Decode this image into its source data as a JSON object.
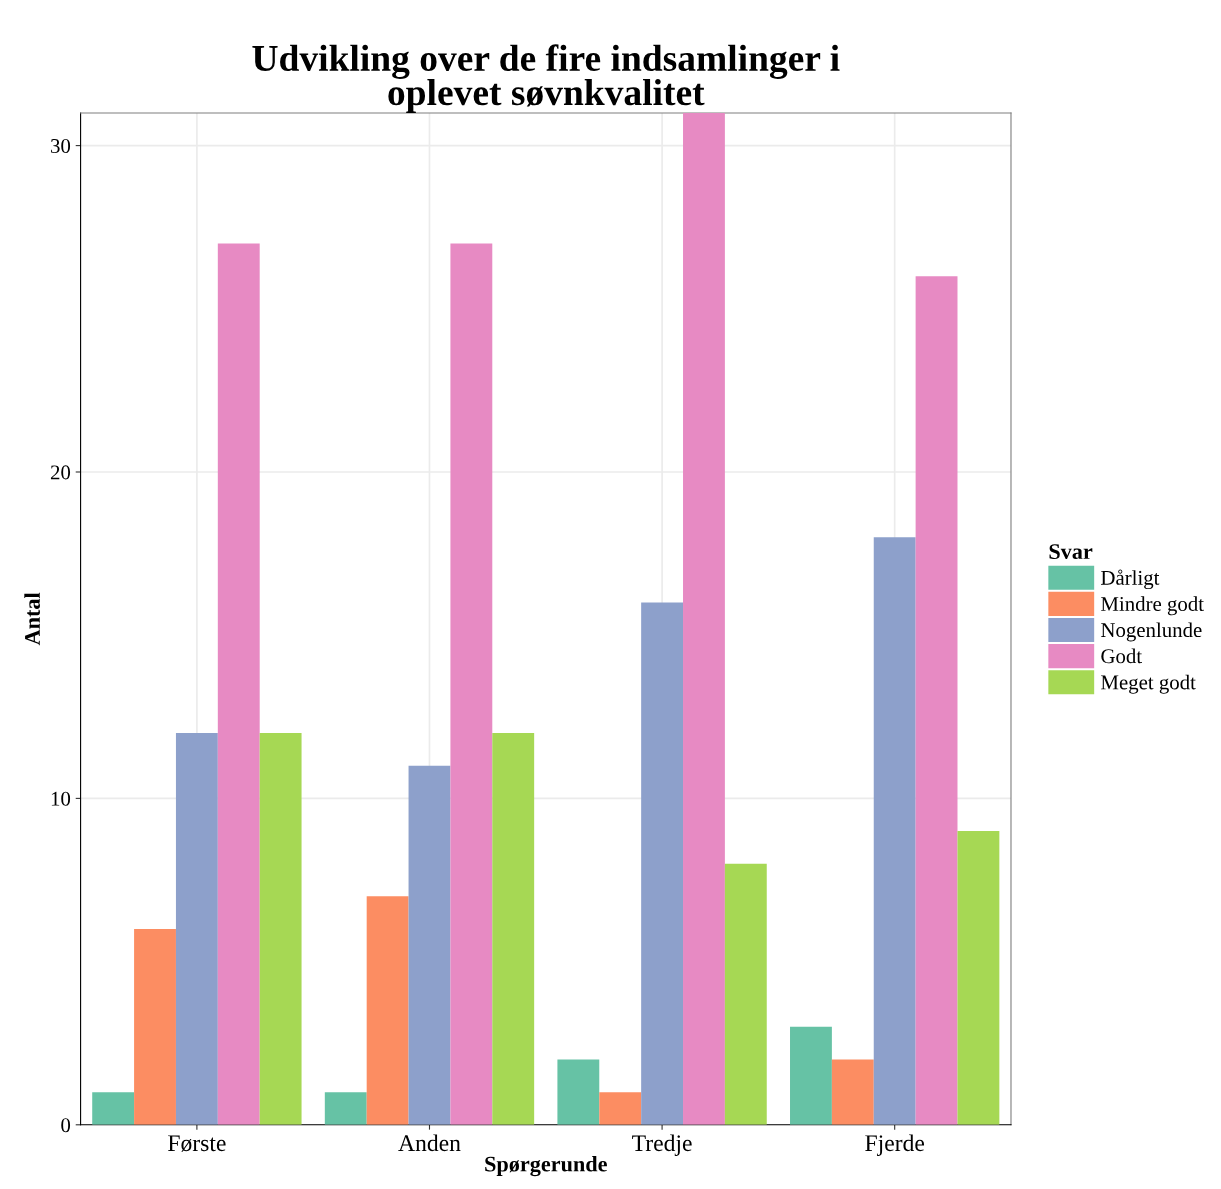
{
  "chart_data": {
    "type": "bar",
    "title": "Udvikling over de fire indsamlinger i\noplevet søvnkvalitet",
    "xlabel": "Spørgerunde",
    "ylabel": "Antal",
    "legend_title": "Svar",
    "categories": [
      "Første",
      "Anden",
      "Tredje",
      "Fjerde"
    ],
    "series": [
      {
        "name": "Dårligt",
        "color": "#66c2a5",
        "values": [
          1,
          1,
          2,
          3
        ]
      },
      {
        "name": "Mindre godt",
        "color": "#fc8d62",
        "values": [
          6,
          7,
          1,
          2
        ]
      },
      {
        "name": "Nogenlunde",
        "color": "#8da0cb",
        "values": [
          12,
          11,
          16,
          18
        ]
      },
      {
        "name": "Godt",
        "color": "#e78ac3",
        "values": [
          27,
          27,
          31,
          26
        ]
      },
      {
        "name": "Meget godt",
        "color": "#a6d854",
        "values": [
          12,
          12,
          8,
          9
        ]
      }
    ],
    "ylim": [
      0,
      31
    ],
    "yticks": [
      0,
      10,
      20,
      30
    ],
    "grid": true,
    "legend": "right"
  }
}
